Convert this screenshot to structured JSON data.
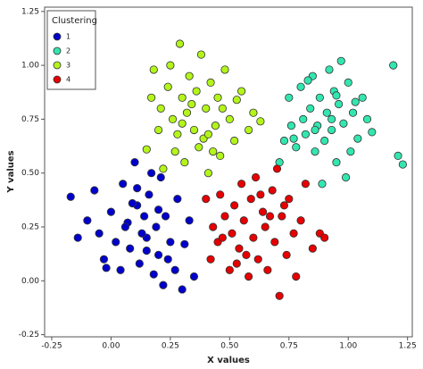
{
  "chart_data": {
    "type": "scatter",
    "xlabel": "X values",
    "ylabel": "Y values",
    "legend_title": "Clustering",
    "legend": "upper-left",
    "grid": false,
    "xlim": [
      -0.28,
      1.27
    ],
    "ylim": [
      -0.26,
      1.27
    ],
    "xticks": [
      -0.25,
      {
        "value": 0,
        "label": "0.00"
      },
      0.25,
      {
        "value": 0.5,
        "label": "0.50"
      },
      0.75,
      {
        "value": 1,
        "label": "1.00"
      },
      1.25
    ],
    "yticks": [
      -0.25,
      {
        "value": 0,
        "label": "0.00"
      },
      0.25,
      {
        "value": 0.5,
        "label": "0.50"
      },
      0.75,
      {
        "value": 1,
        "label": "1.00"
      },
      1.25
    ],
    "series": [
      {
        "name": "1",
        "color": "#0000cc",
        "x": [
          -0.17,
          -0.14,
          -0.1,
          -0.07,
          -0.05,
          -0.03,
          0.0,
          0.02,
          0.04,
          0.05,
          0.07,
          0.08,
          0.1,
          0.11,
          0.12,
          0.14,
          0.15,
          0.16,
          0.18,
          0.19,
          0.2,
          0.21,
          0.22,
          0.23,
          0.25,
          0.27,
          0.28,
          0.3,
          0.33,
          0.35,
          0.13,
          0.17,
          0.09,
          0.24,
          0.06,
          -0.02,
          0.15,
          0.2,
          0.31,
          0.11
        ],
        "y": [
          0.39,
          0.2,
          0.28,
          0.42,
          0.22,
          0.1,
          0.32,
          0.18,
          0.05,
          0.45,
          0.27,
          0.15,
          0.55,
          0.35,
          0.08,
          0.3,
          0.2,
          0.4,
          0.03,
          0.25,
          0.12,
          0.48,
          -0.02,
          0.3,
          0.18,
          0.05,
          0.38,
          -0.04,
          0.28,
          0.02,
          0.22,
          0.5,
          0.36,
          0.1,
          0.25,
          0.06,
          0.14,
          0.33,
          0.17,
          0.43
        ]
      },
      {
        "name": "2",
        "color": "#33e6b0",
        "x": [
          0.71,
          0.73,
          0.75,
          0.76,
          0.78,
          0.8,
          0.81,
          0.82,
          0.84,
          0.85,
          0.86,
          0.87,
          0.88,
          0.9,
          0.91,
          0.92,
          0.93,
          0.94,
          0.95,
          0.96,
          0.97,
          0.98,
          1.0,
          1.01,
          1.02,
          1.04,
          1.06,
          1.08,
          1.1,
          1.19,
          1.21,
          1.23,
          0.89,
          0.83,
          0.99,
          0.93,
          1.03,
          0.77,
          0.95,
          0.86
        ],
        "y": [
          0.55,
          0.65,
          0.85,
          0.72,
          0.62,
          0.9,
          0.75,
          0.68,
          0.8,
          0.95,
          0.6,
          0.72,
          0.85,
          0.65,
          0.78,
          0.98,
          0.7,
          0.88,
          0.55,
          0.82,
          1.02,
          0.73,
          0.92,
          0.6,
          0.78,
          0.66,
          0.85,
          0.75,
          0.69,
          1.0,
          0.58,
          0.54,
          0.45,
          0.93,
          0.48,
          0.75,
          0.83,
          0.66,
          0.86,
          0.7
        ]
      },
      {
        "name": "3",
        "color": "#b3f51a",
        "x": [
          0.15,
          0.17,
          0.18,
          0.2,
          0.21,
          0.22,
          0.24,
          0.25,
          0.26,
          0.28,
          0.29,
          0.3,
          0.31,
          0.32,
          0.33,
          0.35,
          0.36,
          0.37,
          0.38,
          0.4,
          0.41,
          0.42,
          0.44,
          0.45,
          0.46,
          0.48,
          0.5,
          0.52,
          0.55,
          0.58,
          0.6,
          0.63,
          0.34,
          0.39,
          0.43,
          0.27,
          0.47,
          0.53,
          0.3,
          0.41
        ],
        "y": [
          0.61,
          0.85,
          0.98,
          0.7,
          0.8,
          0.52,
          0.9,
          1.0,
          0.75,
          0.68,
          1.1,
          0.85,
          0.55,
          0.78,
          0.95,
          0.7,
          0.88,
          0.62,
          1.05,
          0.8,
          0.5,
          0.92,
          0.72,
          0.85,
          0.58,
          0.98,
          0.75,
          0.65,
          0.88,
          0.7,
          0.78,
          0.74,
          0.82,
          0.66,
          0.6,
          0.6,
          0.8,
          0.84,
          0.73,
          0.68
        ]
      },
      {
        "name": "4",
        "color": "#e60000",
        "x": [
          0.4,
          0.42,
          0.43,
          0.45,
          0.46,
          0.48,
          0.5,
          0.51,
          0.52,
          0.54,
          0.55,
          0.56,
          0.58,
          0.59,
          0.6,
          0.61,
          0.62,
          0.64,
          0.65,
          0.66,
          0.68,
          0.69,
          0.7,
          0.71,
          0.72,
          0.74,
          0.75,
          0.77,
          0.78,
          0.8,
          0.82,
          0.85,
          0.88,
          0.9,
          0.57,
          0.63,
          0.67,
          0.53,
          0.47,
          0.73
        ],
        "y": [
          0.38,
          0.1,
          0.25,
          0.18,
          0.4,
          0.3,
          0.05,
          0.22,
          0.35,
          0.15,
          0.45,
          0.28,
          0.02,
          0.38,
          0.2,
          0.48,
          0.1,
          0.32,
          0.25,
          0.05,
          0.42,
          0.18,
          0.52,
          -0.07,
          0.3,
          0.12,
          0.38,
          0.22,
          0.02,
          0.28,
          0.45,
          0.15,
          0.22,
          0.2,
          0.12,
          0.4,
          0.3,
          0.08,
          0.2,
          0.35
        ]
      }
    ]
  }
}
